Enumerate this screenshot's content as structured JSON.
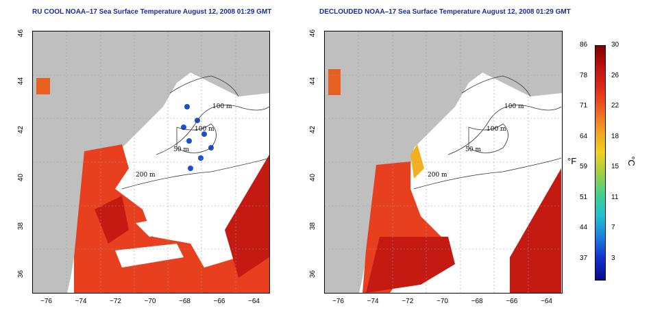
{
  "panels": [
    {
      "id": "left",
      "title": "RU COOL NOAA–17 Sea Surface Temperature August 12, 2008 01:29 GMT"
    },
    {
      "id": "right",
      "title": "DECLOUDED NOAA–17 Sea Surface Temperature August 12, 2008 01:29 GMT"
    }
  ],
  "axes": {
    "lat_ticks": [
      "46",
      "44",
      "42",
      "40",
      "38",
      "36"
    ],
    "lon_ticks": [
      "−76",
      "−74",
      "−72",
      "−70",
      "−68",
      "−66",
      "−64"
    ]
  },
  "contours": {
    "c100a": "100 m",
    "c100b": "100 m",
    "c50": "50 m",
    "c200": "200 m"
  },
  "colorbar": {
    "fahrenheit_ticks": [
      "86",
      "78",
      "71",
      "64",
      "59",
      "51",
      "44",
      "37"
    ],
    "celsius_ticks": [
      "30",
      "26",
      "22",
      "18",
      "15",
      "11",
      "7",
      "3"
    ],
    "fahrenheit_unit": "°F",
    "celsius_unit": "°C",
    "colors": [
      "#0a0a8a",
      "#1030d0",
      "#1a80e0",
      "#20c0d0",
      "#40d090",
      "#a0d040",
      "#f0d020",
      "#f0a020",
      "#f06020",
      "#e02a18",
      "#c01010",
      "#800000"
    ]
  },
  "colors": {
    "land": "#bfbfbf",
    "cloud": "#ffffff",
    "warm": "#e8401f",
    "hot": "#c51a12",
    "title": "#1a2aa0"
  }
}
